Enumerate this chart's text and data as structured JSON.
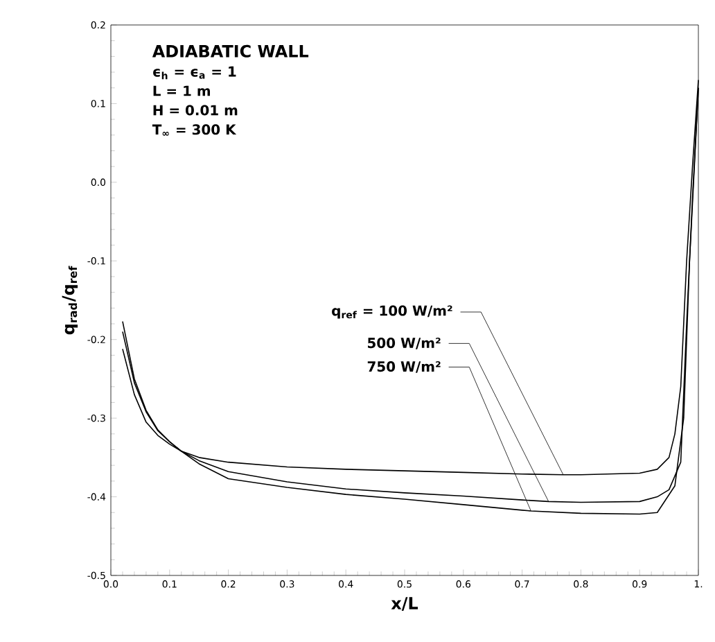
{
  "chart_data": {
    "type": "line",
    "xlabel": "x/L",
    "ylabel": "q$_{rad}$/q$_{ref}$",
    "xlim": [
      0,
      1
    ],
    "ylim": [
      -0.5,
      0.2
    ],
    "xticks": [
      {
        "value": 0,
        "label": "0.0"
      },
      {
        "value": 0.1,
        "label": "0.1"
      },
      {
        "value": 0.2,
        "label": "0.2"
      },
      {
        "value": 0.3,
        "label": "0.3"
      },
      {
        "value": 0.4,
        "label": "0.4"
      },
      {
        "value": 0.5,
        "label": "0.5"
      },
      {
        "value": 0.6,
        "label": "0.6"
      },
      {
        "value": 0.7,
        "label": "0.7"
      },
      {
        "value": 0.8,
        "label": "0.8"
      },
      {
        "value": 0.9,
        "label": "0.9"
      },
      {
        "value": 1,
        "label": "1."
      }
    ],
    "yticks": [
      {
        "value": -0.5,
        "label": "-0.5"
      },
      {
        "value": -0.4,
        "label": "-0.4"
      },
      {
        "value": -0.3,
        "label": "-0.3"
      },
      {
        "value": -0.2,
        "label": "-0.2"
      },
      {
        "value": -0.1,
        "label": "-0.1"
      },
      {
        "value": 0,
        "label": "0.0"
      },
      {
        "value": 0.1,
        "label": "0.1"
      },
      {
        "value": 0.2,
        "label": "0.2"
      }
    ],
    "grid": false,
    "marker": "none",
    "line_style": "solid",
    "series": [
      {
        "color": "#000000",
        "x": [
          0.02,
          0.04,
          0.06,
          0.08,
          0.1,
          0.12,
          0.15,
          0.2,
          0.3,
          0.4,
          0.5,
          0.6,
          0.7,
          0.77,
          0.8,
          0.9,
          0.93,
          0.95,
          0.96,
          0.97,
          0.98,
          0.99,
          1.0
        ],
        "values": [
          -0.212,
          -0.27,
          -0.305,
          -0.322,
          -0.333,
          -0.342,
          -0.35,
          -0.356,
          -0.362,
          -0.365,
          -0.367,
          -0.369,
          -0.371,
          -0.372,
          -0.372,
          -0.37,
          -0.365,
          -0.35,
          -0.32,
          -0.26,
          -0.1,
          0.02,
          0.13
        ]
      },
      {
        "color": "#000000",
        "x": [
          0.02,
          0.04,
          0.06,
          0.08,
          0.1,
          0.12,
          0.15,
          0.2,
          0.3,
          0.4,
          0.5,
          0.6,
          0.7,
          0.745,
          0.8,
          0.9,
          0.93,
          0.95,
          0.97,
          0.98,
          0.99,
          1.0
        ],
        "values": [
          -0.19,
          -0.255,
          -0.292,
          -0.316,
          -0.33,
          -0.342,
          -0.354,
          -0.368,
          -0.381,
          -0.39,
          -0.395,
          -0.399,
          -0.404,
          -0.406,
          -0.407,
          -0.406,
          -0.4,
          -0.391,
          -0.356,
          -0.18,
          -0.02,
          0.12
        ]
      },
      {
        "color": "#000000",
        "x": [
          0.02,
          0.04,
          0.06,
          0.08,
          0.1,
          0.12,
          0.15,
          0.2,
          0.3,
          0.4,
          0.5,
          0.6,
          0.7,
          0.715,
          0.8,
          0.9,
          0.93,
          0.96,
          0.975,
          0.985,
          1.0
        ],
        "values": [
          -0.177,
          -0.25,
          -0.29,
          -0.315,
          -0.33,
          -0.342,
          -0.358,
          -0.377,
          -0.388,
          -0.397,
          -0.403,
          -0.41,
          -0.417,
          -0.418,
          -0.421,
          -0.422,
          -0.42,
          -0.386,
          -0.3,
          -0.1,
          0.12
        ]
      }
    ],
    "annotations": [
      "ADIABATIC WALL",
      "ϵ$_{h}$ = ϵ$_{a}$ = 1",
      "L = 1 m",
      "H = 0.01 m",
      "T$_{∞}$ = 300 K",
      {
        "text": "q$_{ref}$ = 100 W/m²",
        "x": 0.77,
        "y": -0.372
      },
      {
        "text": "500 W/m²",
        "x": 0.745,
        "y": -0.406
      },
      {
        "text": "750 W/m²",
        "x": 0.715,
        "y": -0.418
      }
    ]
  }
}
